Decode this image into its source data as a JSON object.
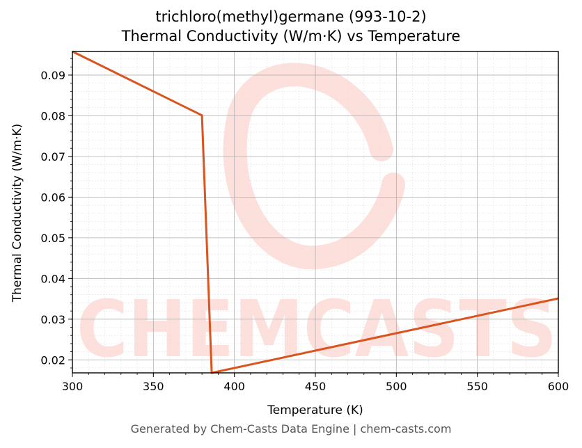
{
  "chart_data": {
    "type": "line",
    "title": "trichloro(methyl)germane (993-10-2)",
    "subtitle": "Thermal Conductivity (W/m·K) vs Temperature",
    "xlabel": "Temperature (K)",
    "ylabel": "Thermal Conductivity (W/m·K)",
    "xlim": [
      300,
      600
    ],
    "ylim": [
      0.0168,
      0.0958
    ],
    "xticks": [
      300,
      350,
      400,
      450,
      500,
      550,
      600
    ],
    "yticks": [
      0.02,
      0.03,
      0.04,
      0.05,
      0.06,
      0.07,
      0.08,
      0.09
    ],
    "ytick_labels": [
      "0.02",
      "0.03",
      "0.04",
      "0.05",
      "0.06",
      "0.07",
      "0.08",
      "0.09"
    ],
    "grid": true,
    "series": [
      {
        "color": "#d9541e",
        "x": [
          300,
          380,
          386,
          600
        ],
        "y": [
          0.0958,
          0.0801,
          0.0168,
          0.0351
        ]
      }
    ]
  },
  "footer": "Generated by Chem-Casts Data Engine | chem-casts.com",
  "watermark": "CHEMCASTS",
  "colors": {
    "line": "#d9541e",
    "watermark": "#fde0dc",
    "grid": "#b0b0b0"
  }
}
